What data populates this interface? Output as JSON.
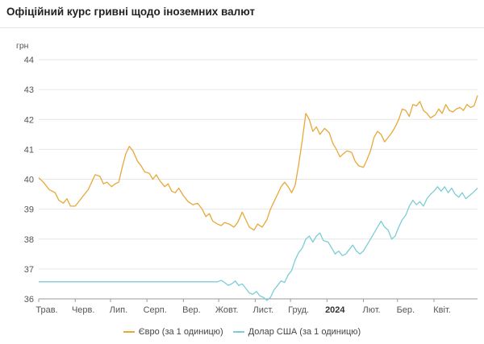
{
  "header": {
    "title": "Офіційний курс гривні щодо іноземних валют"
  },
  "chart_data": {
    "type": "line",
    "ylabel": "грн",
    "ylim": [
      36,
      44
    ],
    "yticks": [
      "36",
      "37",
      "38",
      "39",
      "40",
      "41",
      "42",
      "43",
      "44"
    ],
    "x_range": [
      "2023-05-01",
      "2024-05-08"
    ],
    "xticks": [
      {
        "label": "Трав.",
        "date": "2023-05-01",
        "bold": false
      },
      {
        "label": "Черв.",
        "date": "2023-06-01",
        "bold": false
      },
      {
        "label": "Лип.",
        "date": "2023-07-01",
        "bold": false
      },
      {
        "label": "Серп.",
        "date": "2023-08-01",
        "bold": false
      },
      {
        "label": "Вер.",
        "date": "2023-09-01",
        "bold": false
      },
      {
        "label": "Жовт.",
        "date": "2023-10-01",
        "bold": false
      },
      {
        "label": "Лист.",
        "date": "2023-11-01",
        "bold": false
      },
      {
        "label": "Груд.",
        "date": "2023-12-01",
        "bold": false
      },
      {
        "label": "2024",
        "date": "2024-01-01",
        "bold": true
      },
      {
        "label": "Лют.",
        "date": "2024-02-01",
        "bold": false
      },
      {
        "label": "Бер.",
        "date": "2024-03-01",
        "bold": false
      },
      {
        "label": "Квіт.",
        "date": "2024-04-01",
        "bold": false
      }
    ],
    "grid": true,
    "legend_position": "bottom",
    "series": [
      {
        "name": "Євро (за 1 одиницю)",
        "color": "#e8a83a",
        "points": [
          [
            "2023-05-01",
            40.05
          ],
          [
            "2023-05-05",
            39.9
          ],
          [
            "2023-05-10",
            39.65
          ],
          [
            "2023-05-15",
            39.55
          ],
          [
            "2023-05-18",
            39.3
          ],
          [
            "2023-05-22",
            39.2
          ],
          [
            "2023-05-25",
            39.35
          ],
          [
            "2023-05-28",
            39.1
          ],
          [
            "2023-06-01",
            39.1
          ],
          [
            "2023-06-05",
            39.3
          ],
          [
            "2023-06-08",
            39.45
          ],
          [
            "2023-06-12",
            39.65
          ],
          [
            "2023-06-15",
            39.9
          ],
          [
            "2023-06-18",
            40.15
          ],
          [
            "2023-06-22",
            40.1
          ],
          [
            "2023-06-25",
            39.85
          ],
          [
            "2023-06-28",
            39.9
          ],
          [
            "2023-07-02",
            39.75
          ],
          [
            "2023-07-05",
            39.85
          ],
          [
            "2023-07-08",
            39.9
          ],
          [
            "2023-07-11",
            40.4
          ],
          [
            "2023-07-14",
            40.85
          ],
          [
            "2023-07-17",
            41.1
          ],
          [
            "2023-07-20",
            40.95
          ],
          [
            "2023-07-24",
            40.6
          ],
          [
            "2023-07-27",
            40.45
          ],
          [
            "2023-07-30",
            40.25
          ],
          [
            "2023-08-03",
            40.2
          ],
          [
            "2023-08-06",
            40.0
          ],
          [
            "2023-08-09",
            40.15
          ],
          [
            "2023-08-12",
            39.95
          ],
          [
            "2023-08-16",
            39.75
          ],
          [
            "2023-08-19",
            39.85
          ],
          [
            "2023-08-22",
            39.6
          ],
          [
            "2023-08-25",
            39.55
          ],
          [
            "2023-08-28",
            39.7
          ],
          [
            "2023-09-01",
            39.45
          ],
          [
            "2023-09-05",
            39.25
          ],
          [
            "2023-09-09",
            39.15
          ],
          [
            "2023-09-13",
            39.2
          ],
          [
            "2023-09-17",
            39.0
          ],
          [
            "2023-09-20",
            38.75
          ],
          [
            "2023-09-23",
            38.85
          ],
          [
            "2023-09-26",
            38.6
          ],
          [
            "2023-09-30",
            38.5
          ],
          [
            "2023-10-03",
            38.45
          ],
          [
            "2023-10-06",
            38.55
          ],
          [
            "2023-10-10",
            38.5
          ],
          [
            "2023-10-14",
            38.4
          ],
          [
            "2023-10-17",
            38.55
          ],
          [
            "2023-10-21",
            38.9
          ],
          [
            "2023-10-24",
            38.65
          ],
          [
            "2023-10-27",
            38.4
          ],
          [
            "2023-10-31",
            38.3
          ],
          [
            "2023-11-03",
            38.5
          ],
          [
            "2023-11-07",
            38.4
          ],
          [
            "2023-11-11",
            38.65
          ],
          [
            "2023-11-14",
            39.0
          ],
          [
            "2023-11-17",
            39.25
          ],
          [
            "2023-11-20",
            39.5
          ],
          [
            "2023-11-23",
            39.75
          ],
          [
            "2023-11-26",
            39.9
          ],
          [
            "2023-11-29",
            39.75
          ],
          [
            "2023-12-02",
            39.55
          ],
          [
            "2023-12-05",
            39.8
          ],
          [
            "2023-12-08",
            40.5
          ],
          [
            "2023-12-11",
            41.3
          ],
          [
            "2023-12-14",
            42.2
          ],
          [
            "2023-12-17",
            42.0
          ],
          [
            "2023-12-20",
            41.6
          ],
          [
            "2023-12-23",
            41.75
          ],
          [
            "2023-12-26",
            41.5
          ],
          [
            "2023-12-30",
            41.7
          ],
          [
            "2024-01-03",
            41.55
          ],
          [
            "2024-01-06",
            41.2
          ],
          [
            "2024-01-09",
            41.0
          ],
          [
            "2024-01-12",
            40.75
          ],
          [
            "2024-01-15",
            40.85
          ],
          [
            "2024-01-18",
            40.95
          ],
          [
            "2024-01-22",
            40.9
          ],
          [
            "2024-01-25",
            40.6
          ],
          [
            "2024-01-28",
            40.45
          ],
          [
            "2024-02-01",
            40.4
          ],
          [
            "2024-02-04",
            40.65
          ],
          [
            "2024-02-07",
            40.95
          ],
          [
            "2024-02-10",
            41.4
          ],
          [
            "2024-02-13",
            41.6
          ],
          [
            "2024-02-16",
            41.5
          ],
          [
            "2024-02-19",
            41.25
          ],
          [
            "2024-02-22",
            41.4
          ],
          [
            "2024-02-25",
            41.55
          ],
          [
            "2024-02-28",
            41.75
          ],
          [
            "2024-03-02",
            42.0
          ],
          [
            "2024-03-05",
            42.35
          ],
          [
            "2024-03-08",
            42.3
          ],
          [
            "2024-03-11",
            42.1
          ],
          [
            "2024-03-14",
            42.5
          ],
          [
            "2024-03-17",
            42.45
          ],
          [
            "2024-03-20",
            42.6
          ],
          [
            "2024-03-23",
            42.3
          ],
          [
            "2024-03-26",
            42.2
          ],
          [
            "2024-03-29",
            42.05
          ],
          [
            "2024-04-02",
            42.15
          ],
          [
            "2024-04-05",
            42.35
          ],
          [
            "2024-04-08",
            42.2
          ],
          [
            "2024-04-11",
            42.5
          ],
          [
            "2024-04-14",
            42.3
          ],
          [
            "2024-04-17",
            42.25
          ],
          [
            "2024-04-20",
            42.35
          ],
          [
            "2024-04-23",
            42.4
          ],
          [
            "2024-04-26",
            42.3
          ],
          [
            "2024-04-29",
            42.5
          ],
          [
            "2024-05-02",
            42.4
          ],
          [
            "2024-05-05",
            42.45
          ],
          [
            "2024-05-08",
            42.8
          ]
        ]
      },
      {
        "name": "Долар США (за 1 одиницю)",
        "color": "#7ccdd6",
        "points": [
          [
            "2023-05-01",
            36.57
          ],
          [
            "2023-09-30",
            36.57
          ],
          [
            "2023-10-03",
            36.62
          ],
          [
            "2023-10-06",
            36.55
          ],
          [
            "2023-10-09",
            36.45
          ],
          [
            "2023-10-12",
            36.5
          ],
          [
            "2023-10-15",
            36.6
          ],
          [
            "2023-10-18",
            36.45
          ],
          [
            "2023-10-21",
            36.5
          ],
          [
            "2023-10-24",
            36.35
          ],
          [
            "2023-10-27",
            36.2
          ],
          [
            "2023-10-30",
            36.15
          ],
          [
            "2023-11-02",
            36.25
          ],
          [
            "2023-11-05",
            36.1
          ],
          [
            "2023-11-08",
            36.05
          ],
          [
            "2023-11-11",
            35.95
          ],
          [
            "2023-11-14",
            36.05
          ],
          [
            "2023-11-17",
            36.3
          ],
          [
            "2023-11-20",
            36.45
          ],
          [
            "2023-11-23",
            36.6
          ],
          [
            "2023-11-26",
            36.55
          ],
          [
            "2023-11-29",
            36.8
          ],
          [
            "2023-12-02",
            36.95
          ],
          [
            "2023-12-05",
            37.3
          ],
          [
            "2023-12-08",
            37.55
          ],
          [
            "2023-12-11",
            37.7
          ],
          [
            "2023-12-14",
            38.0
          ],
          [
            "2023-12-17",
            38.1
          ],
          [
            "2023-12-20",
            37.9
          ],
          [
            "2023-12-23",
            38.1
          ],
          [
            "2023-12-26",
            38.2
          ],
          [
            "2023-12-29",
            37.95
          ],
          [
            "2024-01-02",
            37.9
          ],
          [
            "2024-01-05",
            37.7
          ],
          [
            "2024-01-08",
            37.5
          ],
          [
            "2024-01-11",
            37.6
          ],
          [
            "2024-01-14",
            37.45
          ],
          [
            "2024-01-17",
            37.5
          ],
          [
            "2024-01-20",
            37.65
          ],
          [
            "2024-01-23",
            37.8
          ],
          [
            "2024-01-26",
            37.6
          ],
          [
            "2024-01-29",
            37.5
          ],
          [
            "2024-02-01",
            37.6
          ],
          [
            "2024-02-04",
            37.8
          ],
          [
            "2024-02-07",
            38.0
          ],
          [
            "2024-02-10",
            38.2
          ],
          [
            "2024-02-13",
            38.4
          ],
          [
            "2024-02-16",
            38.6
          ],
          [
            "2024-02-19",
            38.4
          ],
          [
            "2024-02-22",
            38.3
          ],
          [
            "2024-02-25",
            38.0
          ],
          [
            "2024-02-28",
            38.1
          ],
          [
            "2024-03-02",
            38.4
          ],
          [
            "2024-03-05",
            38.65
          ],
          [
            "2024-03-08",
            38.8
          ],
          [
            "2024-03-11",
            39.1
          ],
          [
            "2024-03-14",
            39.3
          ],
          [
            "2024-03-17",
            39.15
          ],
          [
            "2024-03-20",
            39.25
          ],
          [
            "2024-03-23",
            39.1
          ],
          [
            "2024-03-26",
            39.35
          ],
          [
            "2024-03-29",
            39.5
          ],
          [
            "2024-04-01",
            39.6
          ],
          [
            "2024-04-04",
            39.75
          ],
          [
            "2024-04-07",
            39.6
          ],
          [
            "2024-04-10",
            39.75
          ],
          [
            "2024-04-13",
            39.55
          ],
          [
            "2024-04-16",
            39.7
          ],
          [
            "2024-04-19",
            39.5
          ],
          [
            "2024-04-22",
            39.4
          ],
          [
            "2024-04-25",
            39.55
          ],
          [
            "2024-04-28",
            39.35
          ],
          [
            "2024-05-01",
            39.45
          ],
          [
            "2024-05-04",
            39.55
          ],
          [
            "2024-05-08",
            39.7
          ]
        ]
      }
    ]
  }
}
